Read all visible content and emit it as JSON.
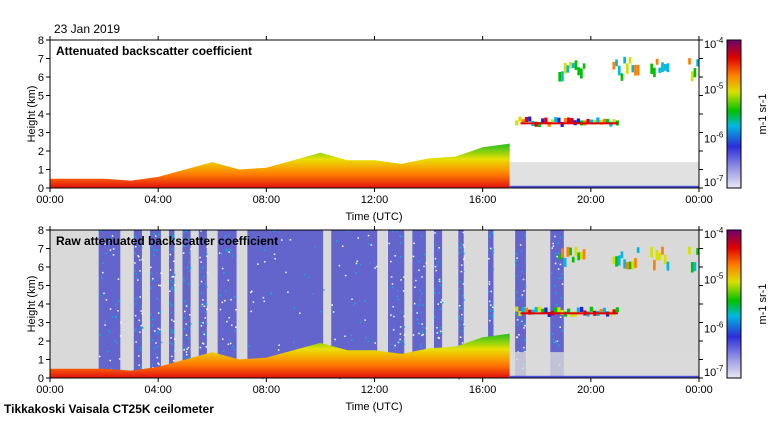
{
  "date": "23 Jan 2019",
  "footer": "Tikkakoski Vaisala CT25K ceilometer",
  "colors": {
    "background": "#d9d9d9",
    "frame": "#000000"
  },
  "chart_data": [
    {
      "type": "heatmap",
      "title": "Attenuated backscatter coefficient",
      "xlabel": "Time (UTC)",
      "ylabel": "Height (km)",
      "xticks": [
        "00:00",
        "04:00",
        "08:00",
        "12:00",
        "16:00",
        "20:00",
        "00:00"
      ],
      "xlim_hours": [
        0,
        24
      ],
      "yticks": [
        0,
        1,
        2,
        3,
        4,
        5,
        6,
        7,
        8
      ],
      "ylim_km": [
        0,
        8
      ],
      "colorbar": {
        "scale": "log",
        "min": 1e-07,
        "max": 0.0001,
        "labels": [
          "10-7",
          "10-6",
          "10-5",
          "10-4"
        ],
        "unit": "m-1 sr-1"
      },
      "features": [
        {
          "name": "boundary layer aerosol",
          "t_start_h": 0,
          "t_end_h": 17,
          "top_km": [
            0.5,
            0.5,
            0.5,
            0.4,
            0.6,
            1.0,
            1.4,
            1.0,
            1.1,
            1.5,
            1.9,
            1.5,
            1.5,
            1.3,
            1.6,
            1.7,
            2.2,
            2.4
          ]
        },
        {
          "name": "cloud layer",
          "t_start_h": 17.2,
          "t_end_h": 21,
          "height_km": 3.4
        },
        {
          "name": "high cloud patches",
          "t_start_h": 18.8,
          "t_end_h": 24,
          "height_km": 6.2
        }
      ]
    },
    {
      "type": "heatmap",
      "title": "Raw attenuated backscatter coefficient",
      "xlabel": "Time (UTC)",
      "ylabel": "Height (km)",
      "xticks": [
        "00:00",
        "04:00",
        "08:00",
        "12:00",
        "16:00",
        "20:00",
        "00:00"
      ],
      "xlim_hours": [
        0,
        24
      ],
      "yticks": [
        0,
        1,
        2,
        3,
        4,
        5,
        6,
        7,
        8
      ],
      "ylim_km": [
        0,
        8
      ],
      "colorbar": {
        "scale": "log",
        "min": 1e-07,
        "max": 0.0001,
        "labels": [
          "10-7",
          "10-6",
          "10-5",
          "10-4"
        ],
        "unit": "m-1 sr-1"
      },
      "noise_bands_hours": [
        [
          1.8,
          2.6
        ],
        [
          3.1,
          3.4
        ],
        [
          3.7,
          4.1
        ],
        [
          4.4,
          4.6
        ],
        [
          4.9,
          5.2
        ],
        [
          5.5,
          5.8
        ],
        [
          6.2,
          6.9
        ],
        [
          7.3,
          10.1
        ],
        [
          10.4,
          12.1
        ],
        [
          12.5,
          13.1
        ],
        [
          13.4,
          13.9
        ],
        [
          14.2,
          14.5
        ],
        [
          15.1,
          15.3
        ],
        [
          16.2,
          16.4
        ],
        [
          17.2,
          17.6
        ],
        [
          18.5,
          19.0
        ]
      ]
    }
  ]
}
